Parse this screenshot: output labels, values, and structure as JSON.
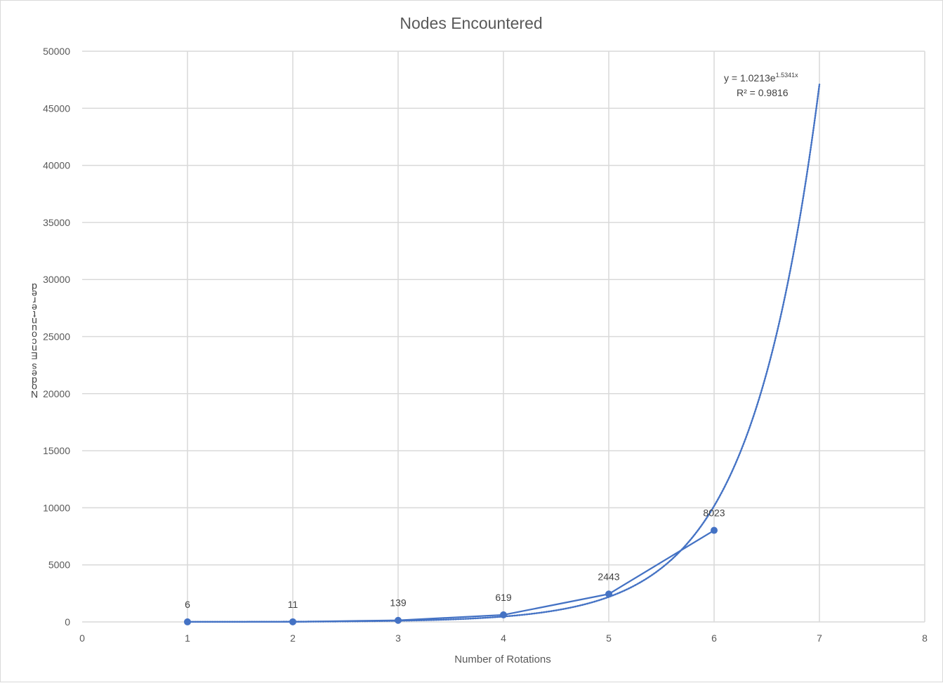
{
  "chart_data": {
    "type": "scatter",
    "title": "Nodes Encountered",
    "xlabel": "Number of Rotations",
    "ylabel": "Nodes Encountered",
    "xlim": [
      0,
      8
    ],
    "ylim": [
      0,
      50000
    ],
    "x_ticks": [
      "0",
      "1",
      "2",
      "3",
      "4",
      "5",
      "6",
      "7",
      "8"
    ],
    "y_ticks": [
      "0",
      "5000",
      "10000",
      "15000",
      "20000",
      "25000",
      "30000",
      "35000",
      "40000",
      "45000",
      "50000"
    ],
    "grid": true,
    "series": [
      {
        "x": [
          1,
          2,
          3,
          4,
          5,
          6
        ],
        "values": [
          6,
          11,
          139,
          619,
          2443,
          8023
        ],
        "data_labels": [
          "6",
          "11",
          "139",
          "619",
          "2443",
          "8023"
        ],
        "color": "#4472c4",
        "style": "lines-and-markers"
      }
    ],
    "trendline": {
      "kind": "exponential",
      "a": 1.0213,
      "b": 1.5341,
      "x_range": [
        1,
        7
      ],
      "color": "#4472c4",
      "style": "dotted",
      "equation_main": "y = 1.0213e",
      "equation_exponent": "1.5341x",
      "r2_label": "R² = 0.9816"
    }
  }
}
